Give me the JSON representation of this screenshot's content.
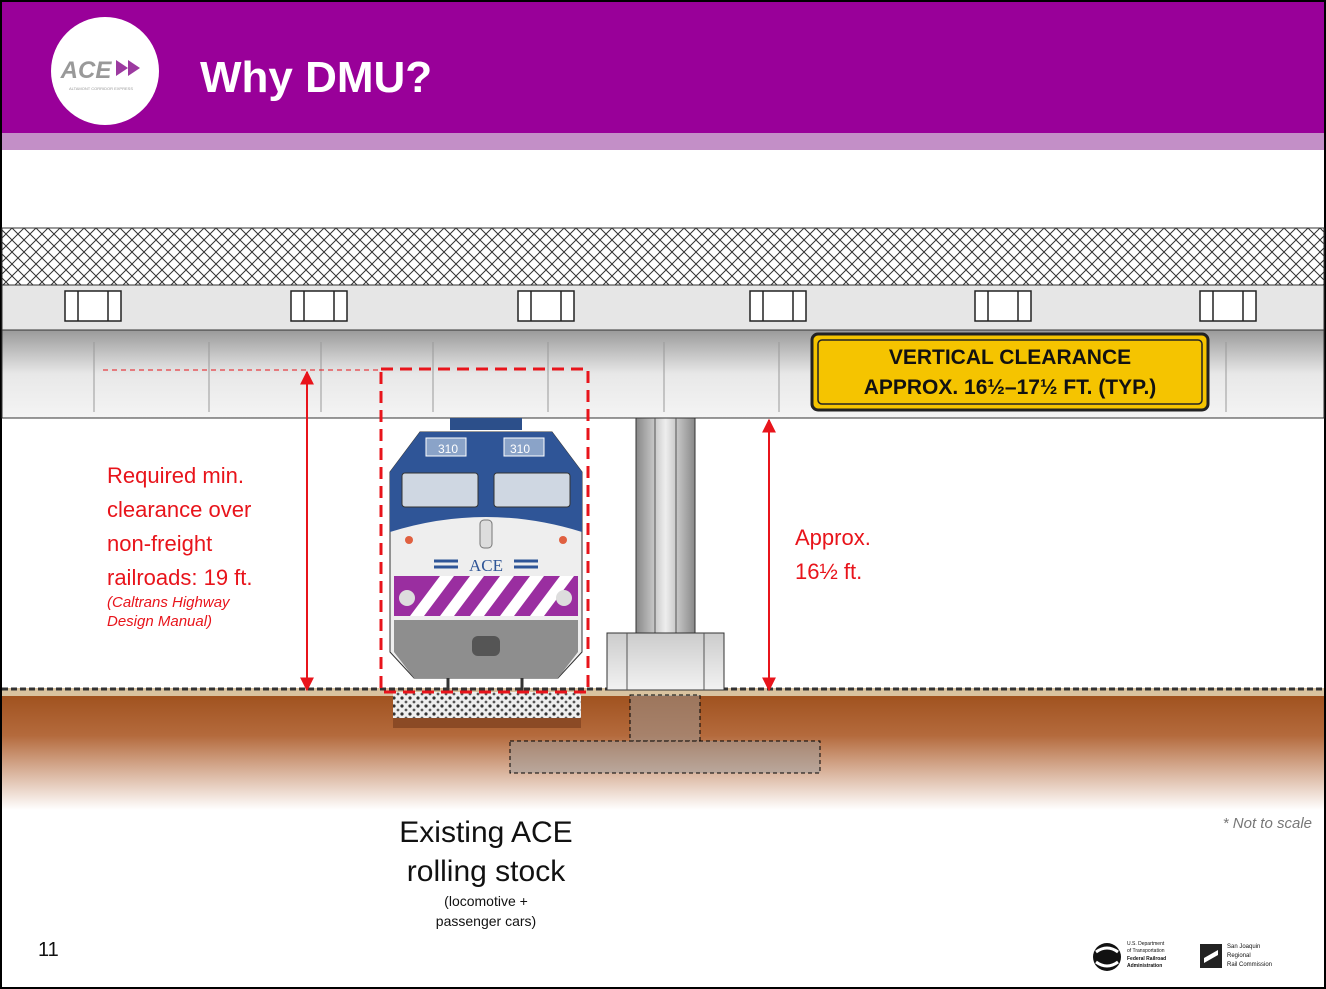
{
  "header": {
    "logo": "ACE",
    "logo_tagline": "ALTAMONT CORRIDOR EXPRESS",
    "title": "Why DMU?"
  },
  "diagram": {
    "sign": [
      "VERTICAL CLEARANCE",
      "APPROX. 16½–17½ FT. (TYP.)"
    ],
    "required_clearance": {
      "lines": [
        "Required min.",
        "clearance over",
        "non-freight",
        "railroads: 19 ft."
      ],
      "citation": [
        "(Caltrans Highway",
        "Design Manual)"
      ]
    },
    "approx_clearance": [
      "Approx.",
      "16½ ft."
    ],
    "train": {
      "numbers": [
        "310",
        "310"
      ],
      "logo": "ACE"
    },
    "caption": {
      "main": [
        "Existing ACE",
        "rolling stock"
      ],
      "detail": [
        "(locomotive +",
        "passenger cars)"
      ]
    }
  },
  "note": "* Not to scale",
  "footer": {
    "page": "11",
    "logos": [
      [
        "U.S. Department",
        "of Transportation",
        "Federal Railroad",
        "Administration"
      ],
      [
        "San Joaquin",
        "Regional",
        "Rail Commission"
      ]
    ]
  }
}
